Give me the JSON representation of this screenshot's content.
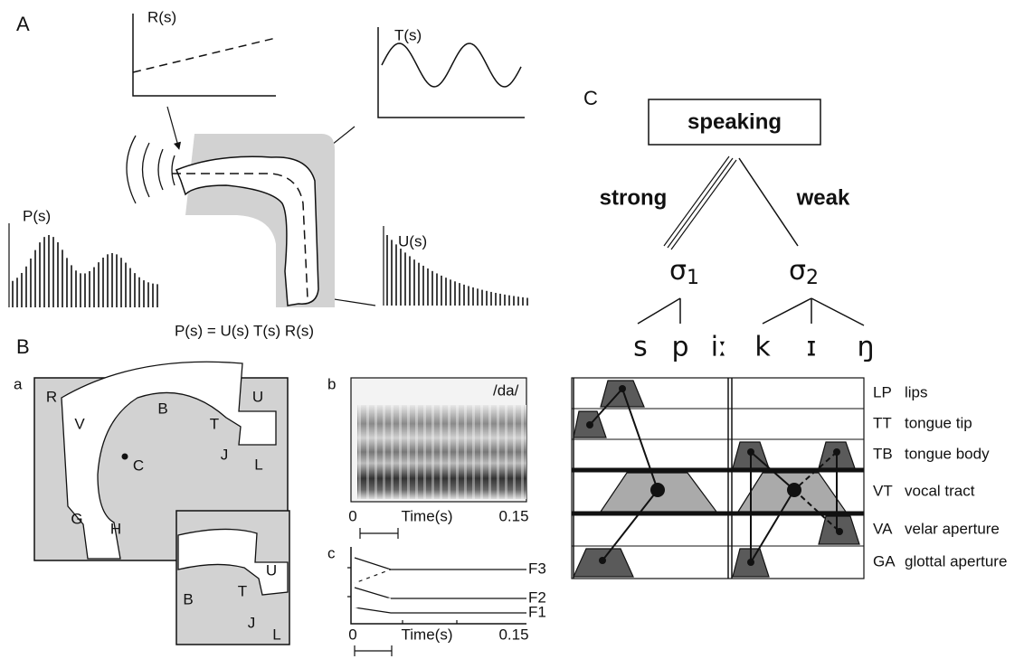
{
  "panel_a": {
    "label": "A",
    "r_label": "R(s)",
    "t_label": "T(s)",
    "p_label": "P(s)",
    "u_label": "U(s)",
    "equation": "P(s) = U(s) T(s) R(s)"
  },
  "panel_b": {
    "label": "B",
    "a": {
      "label": "a",
      "points": [
        "R",
        "V",
        "B",
        "T",
        "U",
        "J",
        "L",
        "C",
        "G",
        "H"
      ],
      "inset_points": [
        "B",
        "T",
        "U",
        "J",
        "L"
      ]
    },
    "b": {
      "label": "b",
      "token": "/da/",
      "x_start": "0",
      "x_label": "Time(s)",
      "x_end": "0.15"
    },
    "c": {
      "label": "c",
      "formants": [
        "F3",
        "F2",
        "F1"
      ],
      "x_start": "0",
      "x_label": "Time(s)",
      "x_end": "0.15"
    }
  },
  "panel_c": {
    "label": "C",
    "root": "speaking",
    "strong": "strong",
    "weak": "weak",
    "syllables": [
      {
        "symbol": "σ",
        "index": "1",
        "segments": [
          "s",
          "p",
          "iː"
        ]
      },
      {
        "symbol": "σ",
        "index": "2",
        "segments": [
          "k",
          "ɪ",
          "ŋ"
        ]
      }
    ],
    "tiers": [
      {
        "code": "LP",
        "name": "lips"
      },
      {
        "code": "TT",
        "name": "tongue tip"
      },
      {
        "code": "TB",
        "name": "tongue body"
      },
      {
        "code": "VT",
        "name": "vocal tract"
      },
      {
        "code": "VA",
        "name": "velar aperture"
      },
      {
        "code": "GA",
        "name": "glottal aperture"
      }
    ]
  }
}
